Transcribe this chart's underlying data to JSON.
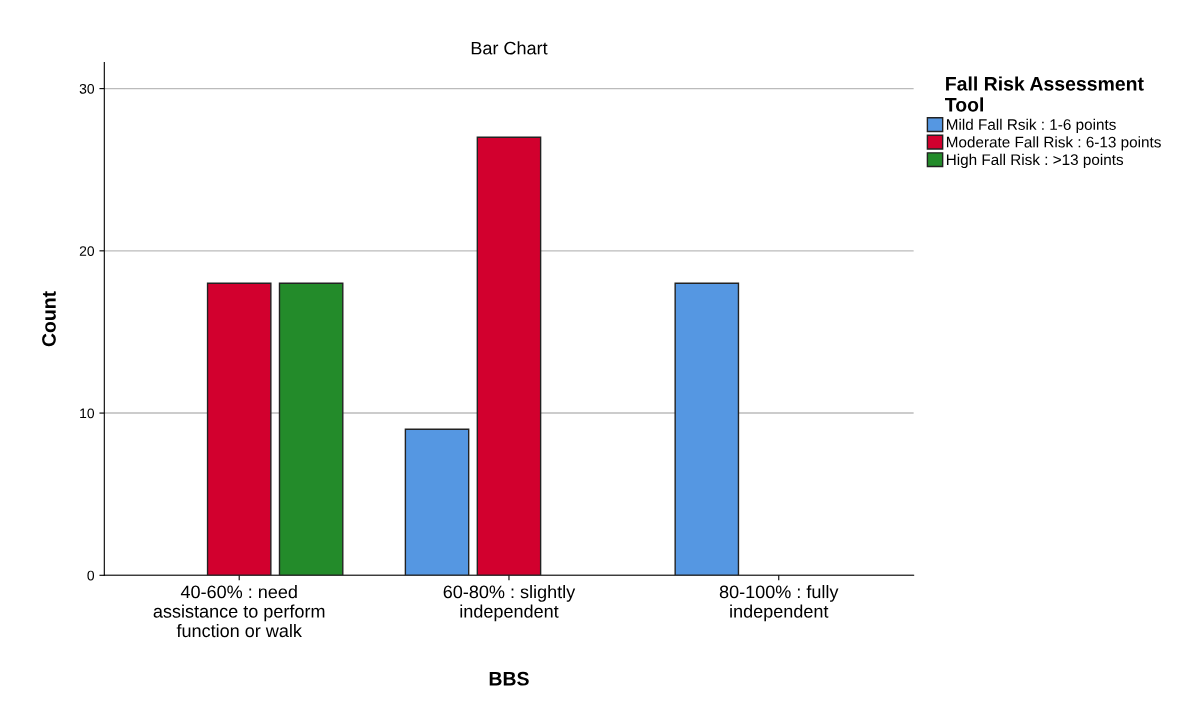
{
  "chart_data": {
    "type": "bar",
    "title": "Bar Chart",
    "xlabel": "BBS",
    "ylabel": "Count",
    "legend_title": "Fall Risk Assessment\nTool",
    "categories": [
      "40-60% : need\nassistance to perform\nfunction or walk",
      "60-80% : slightly\nindependent",
      "80-100% : fully\nindependent"
    ],
    "series": [
      {
        "name": "Mild Fall Rsik : 1-6 points",
        "color": "#5597e2",
        "values": [
          null,
          9,
          18
        ]
      },
      {
        "name": "Moderate Fall Risk : 6-13 points",
        "color": "#d2002e",
        "values": [
          18,
          27,
          null
        ]
      },
      {
        "name": "High Fall Risk : >13 points",
        "color": "#238b2a",
        "values": [
          18,
          null,
          null
        ]
      }
    ],
    "ylim": [
      0,
      31.6
    ],
    "yticks": [
      0,
      10,
      20,
      30
    ],
    "grid": "y",
    "legend": "right"
  }
}
